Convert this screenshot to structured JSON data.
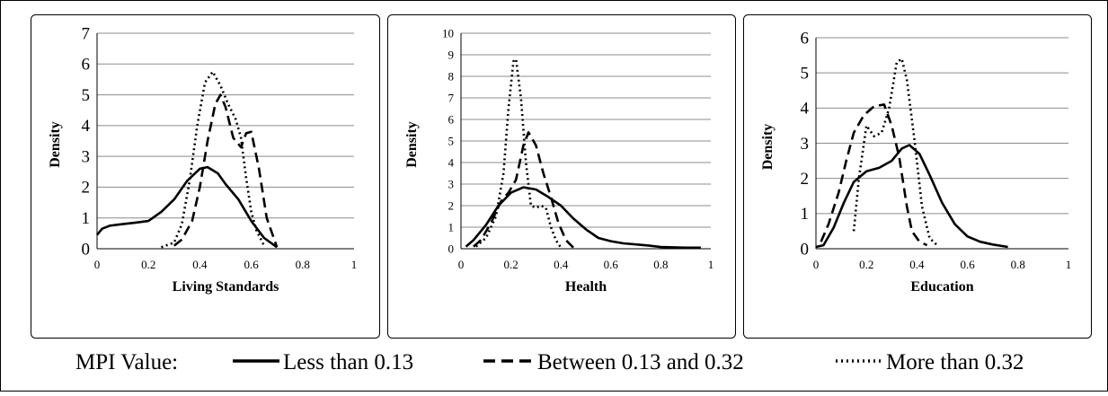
{
  "chart_data": [
    {
      "type": "line",
      "xlabel": "Living Standards",
      "ylabel": "Density",
      "xlim": [
        0,
        1
      ],
      "ylim": [
        0,
        7
      ],
      "xticks": [
        "0",
        "0.2",
        "0.4",
        "0.6",
        "0.8",
        "1"
      ],
      "yticks": [
        "0",
        "1",
        "2",
        "3",
        "4",
        "5",
        "6",
        "7"
      ],
      "grid": "horizontal",
      "series": [
        {
          "name": "Less than 0.13",
          "style": "solid",
          "x": [
            0,
            0.02,
            0.05,
            0.1,
            0.15,
            0.2,
            0.25,
            0.3,
            0.35,
            0.4,
            0.43,
            0.47,
            0.5,
            0.55,
            0.6,
            0.65,
            0.7
          ],
          "y": [
            0.45,
            0.65,
            0.75,
            0.8,
            0.85,
            0.9,
            1.2,
            1.6,
            2.2,
            2.6,
            2.65,
            2.45,
            2.1,
            1.6,
            0.9,
            0.35,
            0.05
          ]
        },
        {
          "name": "Between 0.13 and 0.32",
          "style": "dashed",
          "x": [
            0.3,
            0.33,
            0.37,
            0.4,
            0.43,
            0.46,
            0.48,
            0.5,
            0.53,
            0.56,
            0.58,
            0.6,
            0.63,
            0.66,
            0.7
          ],
          "y": [
            0.1,
            0.3,
            0.9,
            2.0,
            3.5,
            4.7,
            5.0,
            4.6,
            3.6,
            3.3,
            3.75,
            3.8,
            2.6,
            1.0,
            0.05
          ]
        },
        {
          "name": "More than 0.32",
          "style": "dotted",
          "x": [
            0.25,
            0.3,
            0.33,
            0.36,
            0.39,
            0.42,
            0.45,
            0.48,
            0.51,
            0.54,
            0.56,
            0.58,
            0.6,
            0.62,
            0.65
          ],
          "y": [
            0.05,
            0.2,
            0.8,
            2.2,
            4.0,
            5.4,
            5.75,
            5.3,
            4.7,
            4.2,
            3.6,
            2.3,
            1.2,
            0.6,
            0.1
          ]
        }
      ]
    },
    {
      "type": "line",
      "xlabel": "Health",
      "ylabel": "Density",
      "xlim": [
        0,
        1
      ],
      "ylim": [
        0,
        10
      ],
      "xticks": [
        "0",
        "0.2",
        "0.4",
        "0.6",
        "0.8",
        "1"
      ],
      "yticks": [
        "0",
        "1",
        "2",
        "3",
        "4",
        "5",
        "6",
        "7",
        "8",
        "9",
        "10"
      ],
      "grid": "horizontal",
      "series": [
        {
          "name": "Less than 0.13",
          "style": "solid",
          "x": [
            0.02,
            0.05,
            0.1,
            0.15,
            0.2,
            0.25,
            0.3,
            0.35,
            0.4,
            0.45,
            0.5,
            0.55,
            0.6,
            0.65,
            0.7,
            0.75,
            0.8,
            0.9,
            0.96
          ],
          "y": [
            0.1,
            0.4,
            1.1,
            2.0,
            2.6,
            2.85,
            2.75,
            2.4,
            2.0,
            1.4,
            0.9,
            0.5,
            0.35,
            0.25,
            0.2,
            0.15,
            0.08,
            0.05,
            0.05
          ]
        },
        {
          "name": "Between 0.13 and 0.32",
          "style": "dashed",
          "x": [
            0.05,
            0.08,
            0.12,
            0.16,
            0.19,
            0.22,
            0.25,
            0.27,
            0.3,
            0.33,
            0.36,
            0.39,
            0.42,
            0.45
          ],
          "y": [
            0.1,
            0.4,
            1.2,
            2.2,
            2.6,
            3.2,
            4.8,
            5.4,
            4.8,
            3.5,
            2.4,
            1.2,
            0.4,
            0.05
          ]
        },
        {
          "name": "More than 0.32",
          "style": "dotted",
          "x": [
            0.06,
            0.1,
            0.14,
            0.17,
            0.19,
            0.21,
            0.22,
            0.24,
            0.26,
            0.28,
            0.3,
            0.32,
            0.34,
            0.36,
            0.38,
            0.4
          ],
          "y": [
            0.1,
            0.5,
            1.5,
            3.5,
            6.5,
            8.7,
            8.8,
            7.0,
            4.0,
            2.0,
            1.9,
            2.0,
            1.9,
            1.0,
            0.4,
            0.05
          ]
        }
      ]
    },
    {
      "type": "line",
      "xlabel": "Education",
      "ylabel": "Density",
      "xlim": [
        0,
        1
      ],
      "ylim": [
        0,
        6
      ],
      "xticks": [
        "0",
        "0.2",
        "0.4",
        "0.6",
        "0.8",
        "1"
      ],
      "yticks": [
        "0",
        "1",
        "2",
        "3",
        "4",
        "5",
        "6"
      ],
      "grid": "horizontal",
      "series": [
        {
          "name": "Less than 0.13",
          "style": "solid",
          "x": [
            0,
            0.03,
            0.07,
            0.11,
            0.15,
            0.2,
            0.25,
            0.3,
            0.34,
            0.37,
            0.41,
            0.45,
            0.5,
            0.55,
            0.6,
            0.65,
            0.7,
            0.76
          ],
          "y": [
            0.05,
            0.1,
            0.6,
            1.3,
            1.9,
            2.2,
            2.3,
            2.5,
            2.85,
            2.95,
            2.7,
            2.1,
            1.3,
            0.7,
            0.35,
            0.2,
            0.12,
            0.05
          ]
        },
        {
          "name": "Between 0.13 and 0.32",
          "style": "dashed",
          "x": [
            0.02,
            0.05,
            0.09,
            0.12,
            0.15,
            0.19,
            0.23,
            0.27,
            0.3,
            0.33,
            0.36,
            0.38,
            0.41,
            0.44
          ],
          "y": [
            0.2,
            0.7,
            1.6,
            2.5,
            3.3,
            3.8,
            4.05,
            4.1,
            3.5,
            2.6,
            1.2,
            0.5,
            0.2,
            0.1
          ]
        },
        {
          "name": "More than 0.32",
          "style": "dotted",
          "x": [
            0.15,
            0.17,
            0.2,
            0.23,
            0.26,
            0.29,
            0.32,
            0.34,
            0.36,
            0.39,
            0.42,
            0.45,
            0.48
          ],
          "y": [
            0.5,
            2.0,
            3.5,
            3.2,
            3.3,
            4.0,
            5.3,
            5.4,
            4.8,
            3.1,
            1.2,
            0.3,
            0.1
          ]
        }
      ]
    }
  ],
  "legend": {
    "title": "MPI Value:",
    "placement": "bottom",
    "entries": [
      {
        "label": "Less than 0.13",
        "style": "solid"
      },
      {
        "label": "Between 0.13 and 0.32",
        "style": "dashed"
      },
      {
        "label": "More than 0.32",
        "style": "dotted"
      }
    ]
  }
}
